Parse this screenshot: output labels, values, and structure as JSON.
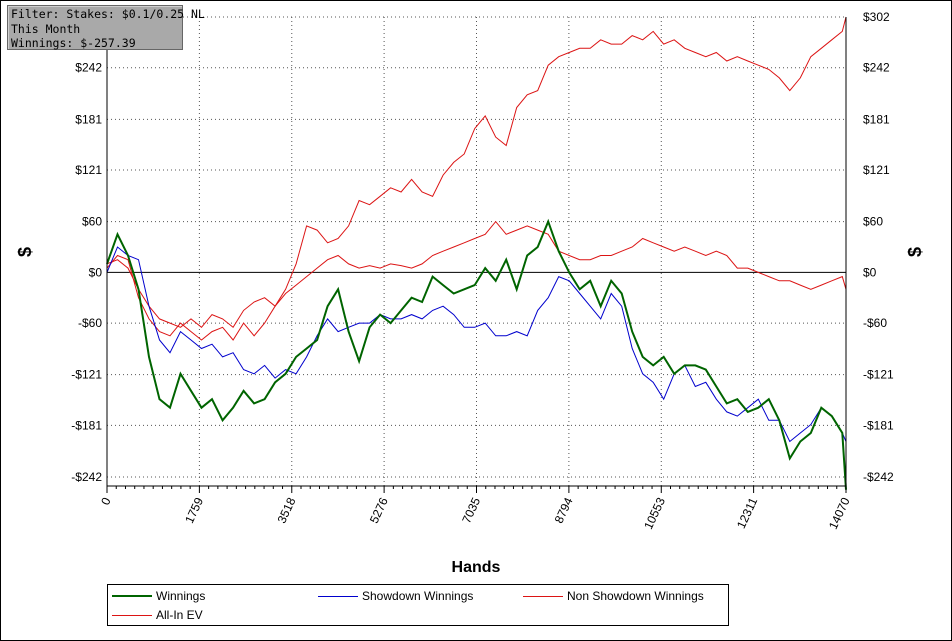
{
  "filter": {
    "line1": "Filter: Stakes: $0.1/0.25 NL",
    "line2": "This Month",
    "line3": "Winnings: $-257.39"
  },
  "chart_data": {
    "type": "line",
    "xlabel": "Hands",
    "ylabel": "$",
    "xlim": [
      0,
      14070
    ],
    "ylim": [
      -242,
      302
    ],
    "x_ticks": [
      0,
      1759,
      3518,
      5276,
      7035,
      8794,
      10553,
      12311,
      14070
    ],
    "x_tick_labels": [
      "0",
      "1759",
      "3518",
      "5276",
      "7035",
      "8794",
      "10553",
      "12311",
      "14070"
    ],
    "y_ticks": [
      -242,
      -181,
      -121,
      -60,
      0,
      60,
      121,
      181,
      242,
      302
    ],
    "y_tick_labels": [
      "-$242",
      "-$181",
      "-$121",
      "-$60",
      "$0",
      "$60",
      "$121",
      "$181",
      "$242",
      "$302"
    ],
    "grid": true,
    "legend_position": "bottom",
    "series": [
      {
        "name": "Winnings",
        "color": "#006400",
        "x": [
          0,
          200,
          400,
          600,
          800,
          1000,
          1200,
          1400,
          1600,
          1800,
          2000,
          2200,
          2400,
          2600,
          2800,
          3000,
          3200,
          3400,
          3600,
          3800,
          4000,
          4200,
          4400,
          4600,
          4800,
          5000,
          5200,
          5400,
          5600,
          5800,
          6000,
          6200,
          6400,
          6600,
          6800,
          7000,
          7200,
          7400,
          7600,
          7800,
          8000,
          8200,
          8400,
          8600,
          8800,
          9000,
          9200,
          9400,
          9600,
          9800,
          10000,
          10200,
          10400,
          10600,
          10800,
          11000,
          11200,
          11400,
          11600,
          11800,
          12000,
          12200,
          12400,
          12600,
          12800,
          13000,
          13200,
          13400,
          13600,
          13800,
          14000,
          14070
        ],
        "y": [
          10,
          45,
          20,
          -20,
          -100,
          -150,
          -160,
          -120,
          -140,
          -160,
          -150,
          -175,
          -160,
          -140,
          -155,
          -150,
          -130,
          -120,
          -100,
          -90,
          -80,
          -40,
          -20,
          -70,
          -105,
          -65,
          -50,
          -60,
          -45,
          -30,
          -35,
          -5,
          -15,
          -25,
          -20,
          -15,
          5,
          -10,
          15,
          -20,
          20,
          30,
          60,
          25,
          0,
          -20,
          -10,
          -40,
          -10,
          -25,
          -70,
          -100,
          -110,
          -100,
          -120,
          -110,
          -110,
          -115,
          -135,
          -155,
          -150,
          -165,
          -160,
          -150,
          -175,
          -220,
          -200,
          -190,
          -160,
          -170,
          -190,
          -257
        ]
      },
      {
        "name": "Showdown Winnings",
        "color": "#0000cd",
        "x": [
          0,
          200,
          400,
          600,
          800,
          1000,
          1200,
          1400,
          1600,
          1800,
          2000,
          2200,
          2400,
          2600,
          2800,
          3000,
          3200,
          3400,
          3600,
          3800,
          4000,
          4200,
          4400,
          4600,
          4800,
          5000,
          5200,
          5400,
          5600,
          5800,
          6000,
          6200,
          6400,
          6600,
          6800,
          7000,
          7200,
          7400,
          7600,
          7800,
          8000,
          8200,
          8400,
          8600,
          8800,
          9000,
          9200,
          9400,
          9600,
          9800,
          10000,
          10200,
          10400,
          10600,
          10800,
          11000,
          11200,
          11400,
          11600,
          11800,
          12000,
          12200,
          12400,
          12600,
          12800,
          13000,
          13200,
          13400,
          13600,
          13800,
          14000,
          14070
        ],
        "y": [
          0,
          30,
          20,
          15,
          -40,
          -80,
          -95,
          -70,
          -80,
          -90,
          -85,
          -100,
          -95,
          -115,
          -120,
          -110,
          -125,
          -115,
          -120,
          -100,
          -75,
          -55,
          -70,
          -65,
          -60,
          -60,
          -50,
          -55,
          -55,
          -50,
          -55,
          -45,
          -40,
          -50,
          -65,
          -65,
          -60,
          -75,
          -75,
          -70,
          -75,
          -45,
          -30,
          -5,
          -10,
          -25,
          -40,
          -55,
          -25,
          -40,
          -90,
          -120,
          -130,
          -150,
          -120,
          -110,
          -135,
          -130,
          -150,
          -165,
          -170,
          -160,
          -150,
          -175,
          -175,
          -200,
          -190,
          -180,
          -160,
          -170,
          -190,
          -200
        ]
      },
      {
        "name": "Non Showdown Winnings",
        "color": "#dc1414",
        "x": [
          0,
          200,
          400,
          600,
          800,
          1000,
          1200,
          1400,
          1600,
          1800,
          2000,
          2200,
          2400,
          2600,
          2800,
          3000,
          3200,
          3400,
          3600,
          3800,
          4000,
          4200,
          4400,
          4600,
          4800,
          5000,
          5200,
          5400,
          5600,
          5800,
          6000,
          6200,
          6400,
          6600,
          6800,
          7000,
          7200,
          7400,
          7600,
          7800,
          8000,
          8200,
          8400,
          8600,
          8800,
          9000,
          9200,
          9400,
          9600,
          9800,
          10000,
          10200,
          10400,
          10600,
          10800,
          11000,
          11200,
          11400,
          11600,
          11800,
          12000,
          12200,
          12400,
          12600,
          12800,
          13000,
          13200,
          13400,
          13600,
          13800,
          14000,
          14070
        ],
        "y": [
          10,
          15,
          5,
          -20,
          -40,
          -55,
          -60,
          -65,
          -55,
          -65,
          -50,
          -55,
          -65,
          -45,
          -35,
          -30,
          -40,
          -25,
          -15,
          -5,
          5,
          15,
          20,
          10,
          5,
          8,
          5,
          10,
          8,
          5,
          10,
          20,
          25,
          30,
          35,
          40,
          45,
          60,
          45,
          50,
          55,
          50,
          45,
          25,
          20,
          15,
          15,
          20,
          20,
          25,
          30,
          40,
          35,
          30,
          25,
          30,
          25,
          20,
          25,
          20,
          5,
          5,
          0,
          -5,
          -10,
          -10,
          -15,
          -20,
          -15,
          -10,
          -5,
          -20
        ]
      },
      {
        "name": "All-In EV",
        "color": "#dc1414",
        "x": [
          0,
          200,
          400,
          600,
          800,
          1000,
          1200,
          1400,
          1600,
          1800,
          2000,
          2200,
          2400,
          2600,
          2800,
          3000,
          3200,
          3400,
          3600,
          3800,
          4000,
          4200,
          4400,
          4600,
          4800,
          5000,
          5200,
          5400,
          5600,
          5800,
          6000,
          6200,
          6400,
          6600,
          6800,
          7000,
          7200,
          7400,
          7600,
          7800,
          8000,
          8200,
          8400,
          8600,
          8800,
          9000,
          9200,
          9400,
          9600,
          9800,
          10000,
          10200,
          10400,
          10600,
          10800,
          11000,
          11200,
          11400,
          11600,
          11800,
          12000,
          12200,
          12400,
          12600,
          12800,
          13000,
          13200,
          13400,
          13600,
          13800,
          14000,
          14070
        ],
        "y": [
          5,
          20,
          15,
          -30,
          -55,
          -70,
          -75,
          -60,
          -70,
          -80,
          -70,
          -65,
          -80,
          -60,
          -75,
          -60,
          -40,
          -20,
          10,
          55,
          50,
          35,
          40,
          55,
          85,
          80,
          90,
          100,
          95,
          110,
          95,
          90,
          115,
          130,
          140,
          170,
          185,
          160,
          150,
          195,
          210,
          215,
          245,
          255,
          260,
          265,
          265,
          275,
          270,
          270,
          280,
          275,
          285,
          270,
          275,
          265,
          260,
          255,
          260,
          250,
          255,
          250,
          245,
          240,
          230,
          215,
          230,
          255,
          265,
          275,
          285,
          302
        ]
      }
    ]
  },
  "legend": {
    "items": [
      {
        "label": "Winnings",
        "color": "#006400"
      },
      {
        "label": "Showdown Winnings",
        "color": "#0000cd"
      },
      {
        "label": "Non Showdown Winnings",
        "color": "#dc1414"
      },
      {
        "label": "All-In EV",
        "color": "#dc1414"
      }
    ]
  }
}
